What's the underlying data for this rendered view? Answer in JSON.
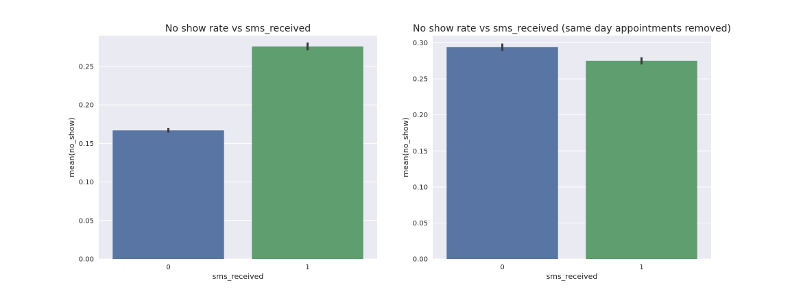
{
  "chart_data": [
    {
      "type": "bar",
      "title": "No show rate vs sms_received",
      "xlabel": "sms_received",
      "ylabel": "mean(no_show)",
      "categories": [
        "0",
        "1"
      ],
      "values": [
        0.167,
        0.276
      ],
      "error_bars": [
        [
          0.164,
          0.17
        ],
        [
          0.271,
          0.281
        ]
      ],
      "colors": [
        "#5975a4",
        "#5f9e6e"
      ],
      "ylim": [
        0,
        0.29
      ],
      "yticks": [
        0.0,
        0.05,
        0.1,
        0.15,
        0.2,
        0.25
      ],
      "ytick_labels": [
        "0.00",
        "0.05",
        "0.10",
        "0.15",
        "0.20",
        "0.25"
      ],
      "grid": true
    },
    {
      "type": "bar",
      "title": "No show rate vs sms_received (same day appointments removed)",
      "xlabel": "sms_received",
      "ylabel": "mean(no_show)",
      "categories": [
        "0",
        "1"
      ],
      "values": [
        0.294,
        0.275
      ],
      "error_bars": [
        [
          0.289,
          0.299
        ],
        [
          0.27,
          0.28
        ]
      ],
      "colors": [
        "#5975a4",
        "#5f9e6e"
      ],
      "ylim": [
        0,
        0.31
      ],
      "yticks": [
        0.0,
        0.05,
        0.1,
        0.15,
        0.2,
        0.25,
        0.3
      ],
      "ytick_labels": [
        "0.00",
        "0.05",
        "0.10",
        "0.15",
        "0.20",
        "0.25",
        "0.30"
      ],
      "grid": true
    }
  ]
}
